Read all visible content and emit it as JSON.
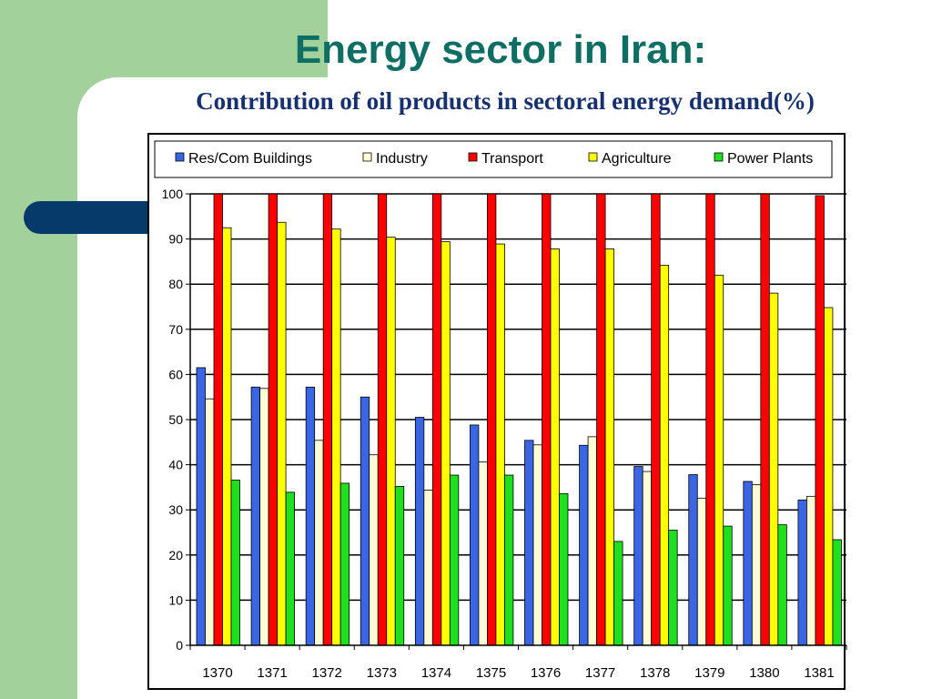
{
  "slide": {
    "title": "Energy sector in Iran:",
    "subtitle": "Contribution of oil products in sectoral energy demand(%)"
  },
  "colors": {
    "background_left": "#a3d19c",
    "accent_bar": "#063a6b",
    "title": "#0f6e63",
    "subtitle": "#17306e"
  },
  "chart_data": {
    "type": "bar",
    "title": "",
    "xlabel": "",
    "ylabel": "",
    "ylim": [
      0,
      100
    ],
    "yticks": [
      0,
      10,
      20,
      30,
      40,
      50,
      60,
      70,
      80,
      90,
      100
    ],
    "grid": true,
    "legend_position": "top",
    "categories": [
      "1370",
      "1371",
      "1372",
      "1373",
      "1374",
      "1375",
      "1376",
      "1377",
      "1378",
      "1379",
      "1380",
      "1381"
    ],
    "series": [
      {
        "name": "Res/Com Buildings",
        "color": "#3a66e6",
        "values": [
          61.5,
          57.2,
          57.2,
          55.0,
          50.5,
          48.8,
          45.4,
          44.3,
          39.6,
          37.8,
          36.3,
          32.2
        ]
      },
      {
        "name": "Industry",
        "color": "#fffdd6",
        "values": [
          54.6,
          56.9,
          45.4,
          42.2,
          34.4,
          40.6,
          44.4,
          46.2,
          38.5,
          32.6,
          35.6,
          33.0
        ]
      },
      {
        "name": "Transport",
        "color": "#ff0000",
        "values": [
          100,
          100,
          100,
          100,
          100,
          100,
          100,
          100,
          100,
          100,
          100,
          99.6
        ]
      },
      {
        "name": "Agriculture",
        "color": "#ffff00",
        "values": [
          92.5,
          93.7,
          92.2,
          90.4,
          89.4,
          88.9,
          87.8,
          87.8,
          84.2,
          82.0,
          78.0,
          74.8
        ]
      },
      {
        "name": "Power Plants",
        "color": "#1ee01e",
        "values": [
          36.6,
          33.9,
          35.9,
          35.2,
          37.7,
          37.7,
          33.6,
          23.0,
          25.5,
          26.4,
          26.7,
          23.4
        ]
      }
    ]
  }
}
